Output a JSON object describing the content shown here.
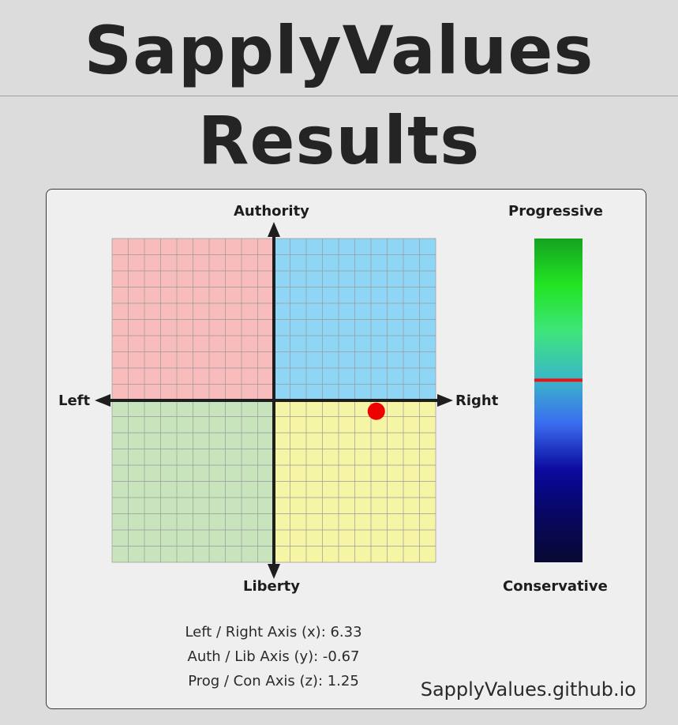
{
  "title": {
    "line1": "SapplyValues",
    "line2": "Results"
  },
  "compass": {
    "labels": {
      "top": "Authority",
      "bottom": "Liberty",
      "left": "Left",
      "right": "Right"
    },
    "quadrant_colors": {
      "auth_left": "#f8bcbc",
      "auth_right": "#8fd5f5",
      "lib_left": "#c8e4bc",
      "lib_right": "#f5f5a5"
    },
    "grid_divisions": 20,
    "axis_range": [
      -10,
      10
    ],
    "marker_color": "#ee0000"
  },
  "progress_bar": {
    "top_label": "Progressive",
    "bottom_label": "Conservative",
    "axis_range": [
      -10,
      10
    ],
    "marker_color": "#ee1111",
    "gradient_colors": [
      "#15a321",
      "#22e422",
      "#3ee57a",
      "#3bb9c6",
      "#3a6cf0",
      "#0a0a9e",
      "#070761",
      "#090934"
    ]
  },
  "chart_data": {
    "type": "scatter",
    "x": [
      6.33
    ],
    "y": [
      -0.67
    ],
    "z": [
      1.25
    ],
    "xlim": [
      -10,
      10
    ],
    "ylim": [
      -10,
      10
    ],
    "zlim": [
      -10,
      10
    ],
    "xlabel": "",
    "ylabel": ""
  },
  "stats": {
    "x_line": "Left / Right Axis (x): 6.33",
    "y_line": "Auth / Lib Axis (y): -0.67",
    "z_line": "Prog / Con Axis (z): 1.25"
  },
  "footer": {
    "site": "SapplyValues.github.io"
  }
}
